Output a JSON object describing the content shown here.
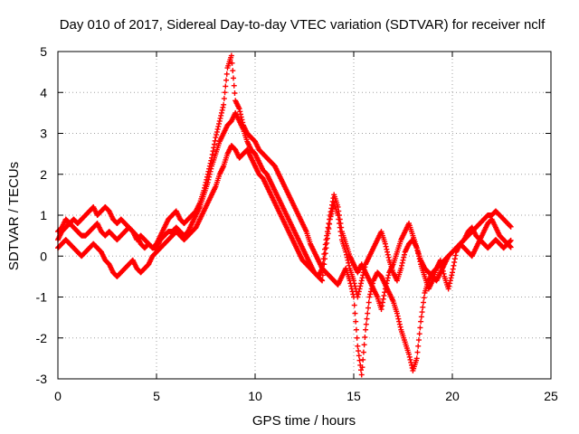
{
  "chart_data": {
    "type": "scatter",
    "title": "Day 010 of 2017, Sidereal Day-to-day VTEC variation (SDTVAR) for receiver nclf",
    "xlabel": "GPS time / hours",
    "ylabel": "SDTVAR / TECUs",
    "xlim": [
      0,
      25
    ],
    "ylim": [
      -3,
      5
    ],
    "x_ticks": [
      0,
      5,
      10,
      15,
      20,
      25
    ],
    "y_ticks": [
      -3,
      -2,
      -1,
      0,
      1,
      2,
      3,
      4,
      5
    ],
    "grid": true,
    "marker": "+",
    "color": "#ff0000",
    "series": [
      {
        "name": "SDTVAR",
        "x": [
          0.0,
          0.2,
          0.4,
          0.6,
          0.8,
          1.0,
          1.2,
          1.4,
          1.6,
          1.8,
          2.0,
          2.2,
          2.4,
          2.6,
          2.8,
          3.0,
          3.2,
          3.4,
          3.6,
          3.8,
          4.0,
          4.2,
          4.4,
          4.6,
          4.8,
          5.0,
          5.2,
          5.4,
          5.6,
          5.8,
          6.0,
          6.2,
          6.4,
          6.6,
          6.8,
          7.0,
          7.2,
          7.4,
          7.6,
          7.8,
          8.0,
          8.2,
          8.4,
          8.6,
          8.8,
          9.0,
          9.2,
          9.4,
          9.6,
          9.8,
          10.0,
          10.2,
          10.4,
          10.6,
          10.8,
          11.0,
          11.2,
          11.4,
          11.6,
          11.8,
          12.0,
          12.2,
          12.4,
          12.6,
          12.8,
          13.0,
          13.2,
          13.4,
          13.6,
          13.8,
          14.0,
          14.2,
          14.4,
          14.6,
          14.8,
          15.0,
          15.2,
          15.4,
          15.6,
          15.8,
          16.0,
          16.2,
          16.4,
          16.6,
          16.8,
          17.0,
          17.2,
          17.4,
          17.6,
          17.8,
          18.0,
          18.2,
          18.4,
          18.6,
          18.8,
          19.0,
          19.2,
          19.4,
          19.6,
          19.8,
          20.0,
          20.2,
          20.4,
          20.6,
          20.8,
          21.0,
          21.2,
          21.4,
          21.6,
          21.8,
          22.0,
          22.2,
          22.4,
          22.6,
          22.8,
          23.0
        ],
        "y": [
          0.4,
          0.6,
          0.7,
          0.8,
          0.9,
          0.8,
          0.9,
          1.0,
          1.1,
          1.2,
          1.0,
          1.1,
          1.2,
          1.1,
          0.9,
          0.8,
          0.9,
          0.8,
          0.7,
          0.6,
          0.5,
          0.3,
          0.2,
          0.3,
          0.2,
          0.3,
          0.5,
          0.7,
          0.9,
          1.0,
          1.1,
          0.9,
          0.8,
          0.9,
          1.0,
          1.1,
          1.3,
          1.6,
          2.0,
          2.4,
          2.9,
          3.3,
          3.7,
          4.6,
          4.9,
          3.8,
          3.6,
          3.2,
          3.0,
          2.9,
          2.8,
          2.6,
          2.5,
          2.4,
          2.3,
          2.2,
          2.0,
          1.8,
          1.6,
          1.4,
          1.2,
          1.0,
          0.8,
          0.6,
          0.3,
          0.1,
          -0.1,
          -0.3,
          -0.4,
          -0.5,
          -0.6,
          -0.7,
          -0.5,
          -0.3,
          -0.6,
          -1.0,
          -2.2,
          -2.9,
          -1.8,
          -1.0,
          -0.6,
          -0.4,
          -0.5,
          -0.7,
          -0.9,
          -1.1,
          -1.4,
          -1.8,
          -2.1,
          -2.4,
          -2.8,
          -2.5,
          -1.6,
          -0.9,
          -0.6,
          -0.4,
          -0.3,
          -0.2,
          -0.1,
          0.0,
          0.1,
          0.2,
          0.3,
          0.4,
          0.5,
          0.6,
          0.7,
          0.8,
          0.9,
          1.0,
          1.0,
          1.1,
          1.0,
          0.9,
          0.8,
          0.7
        ],
        "y_alt": [
          0.6,
          0.7,
          0.9,
          0.8,
          0.7,
          0.6,
          0.5,
          0.5,
          0.6,
          0.7,
          0.8,
          0.6,
          0.5,
          0.6,
          0.5,
          0.4,
          0.5,
          0.6,
          0.7,
          0.6,
          0.4,
          0.5,
          0.4,
          0.3,
          0.2,
          0.2,
          0.4,
          0.5,
          0.6,
          0.6,
          0.7,
          0.6,
          0.5,
          0.6,
          0.8,
          1.0,
          1.2,
          1.5,
          1.8,
          2.2,
          2.5,
          2.8,
          3.0,
          3.2,
          3.3,
          3.5,
          3.3,
          3.1,
          2.8,
          2.6,
          2.5,
          2.3,
          2.1,
          2.0,
          1.8,
          1.6,
          1.4,
          1.2,
          1.0,
          0.8,
          0.6,
          0.4,
          0.2,
          0.0,
          -0.2,
          -0.4,
          -0.5,
          -0.6,
          0.2,
          0.9,
          1.3,
          1.0,
          0.4,
          0.1,
          -0.3,
          -0.6,
          -1.0,
          -0.6,
          -0.2,
          0.0,
          0.2,
          0.4,
          0.6,
          0.3,
          -0.1,
          -0.4,
          -0.6,
          -0.3,
          0.1,
          0.3,
          0.4,
          0.2,
          -0.1,
          -0.3,
          -0.4,
          -0.5,
          -0.6,
          -0.4,
          -0.2,
          0.0,
          0.1,
          0.2,
          0.3,
          0.4,
          0.6,
          0.7,
          0.5,
          0.4,
          0.3,
          0.2,
          0.3,
          0.4,
          0.3,
          0.2,
          0.3,
          0.4
        ],
        "y_low": [
          0.2,
          0.3,
          0.4,
          0.3,
          0.2,
          0.1,
          0.0,
          0.1,
          0.2,
          0.3,
          0.2,
          0.1,
          -0.1,
          -0.2,
          -0.4,
          -0.5,
          -0.4,
          -0.3,
          -0.2,
          -0.1,
          -0.3,
          -0.4,
          -0.3,
          -0.2,
          0.0,
          0.1,
          0.2,
          0.3,
          0.4,
          0.5,
          0.6,
          0.5,
          0.4,
          0.5,
          0.6,
          0.7,
          0.9,
          1.1,
          1.3,
          1.5,
          1.7,
          2.0,
          2.2,
          2.5,
          2.7,
          2.6,
          2.4,
          2.5,
          2.6,
          2.4,
          2.2,
          2.0,
          1.9,
          1.7,
          1.5,
          1.3,
          1.1,
          0.9,
          0.7,
          0.5,
          0.3,
          0.1,
          -0.1,
          -0.2,
          -0.3,
          -0.4,
          -0.5,
          -0.3,
          0.4,
          1.0,
          1.5,
          1.2,
          0.6,
          0.3,
          0.0,
          -0.2,
          -0.4,
          -0.2,
          -0.4,
          -0.6,
          -0.8,
          -1.0,
          -1.3,
          -0.8,
          -0.4,
          -0.2,
          0.1,
          0.4,
          0.6,
          0.8,
          0.5,
          0.2,
          -0.2,
          -0.5,
          -0.8,
          -0.6,
          -0.3,
          -0.1,
          -0.5,
          -0.8,
          -0.4,
          0.1,
          0.3,
          0.2,
          0.1,
          0.0,
          0.2,
          0.4,
          0.6,
          0.8,
          0.9,
          0.7,
          0.5,
          0.4,
          0.3,
          0.2
        ]
      }
    ]
  }
}
